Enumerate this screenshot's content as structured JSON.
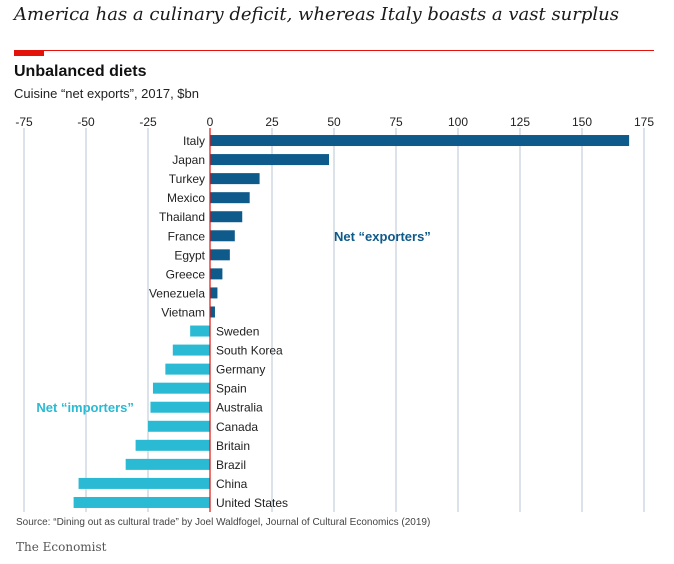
{
  "headline": "America has a culinary deficit, whereas Italy boasts a vast surplus",
  "chart_data": {
    "type": "bar",
    "orientation": "horizontal",
    "title": "Unbalanced diets",
    "subtitle": "Cuisine “net exports”, 2017, $bn",
    "categories": [
      "Italy",
      "Japan",
      "Turkey",
      "Mexico",
      "Thailand",
      "France",
      "Egypt",
      "Greece",
      "Venezuela",
      "Vietnam",
      "Sweden",
      "South Korea",
      "Germany",
      "Spain",
      "Australia",
      "Canada",
      "Britain",
      "Brazil",
      "China",
      "United States"
    ],
    "values": [
      169,
      48,
      20,
      16,
      13,
      10,
      8,
      5,
      3,
      2,
      -8,
      -15,
      -18,
      -23,
      -24,
      -25,
      -30,
      -34,
      -53,
      -55
    ],
    "xlim": [
      -75,
      175
    ],
    "xticks": [
      -75,
      -50,
      -25,
      0,
      25,
      50,
      75,
      100,
      125,
      150,
      175
    ],
    "xlabel": "",
    "ylabel": "",
    "grid": true,
    "annotations": [
      {
        "text": "Net “exporters”",
        "x": 50,
        "category": "France"
      },
      {
        "text": "Net “importers”",
        "x": -70,
        "category": "Australia"
      }
    ],
    "colors": {
      "exporters": "#0e5a8a",
      "importers": "#2bbad3",
      "zero_line": "#e3120b",
      "grid": "#b7c6d3"
    }
  },
  "source": "Source: “Dining out as cultural trade” by Joel Waldfogel, Journal of Cultural Economics (2019)",
  "brand": "The Economist"
}
